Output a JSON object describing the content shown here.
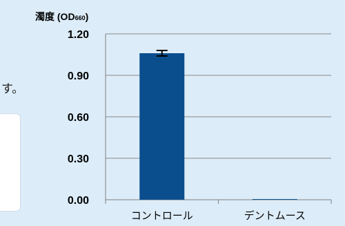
{
  "background_fragment": {
    "partial_text": "す。"
  },
  "chart_data": {
    "type": "bar",
    "ylabel": "濁度 (OD",
    "ylabel_subscript": "660",
    "ylabel_close": ")",
    "categories": [
      "コントロール",
      "デントムース"
    ],
    "values": [
      1.06,
      0.005
    ],
    "errors": [
      0.02,
      0
    ],
    "ylim": [
      0,
      1.2
    ],
    "yticks": [
      0,
      0.3,
      0.6,
      0.9,
      1.2
    ],
    "ytick_labels": [
      "0.00",
      "0.30",
      "0.60",
      "0.90",
      "1.20"
    ],
    "grid": true,
    "bar_color": "#0b4e8d"
  }
}
